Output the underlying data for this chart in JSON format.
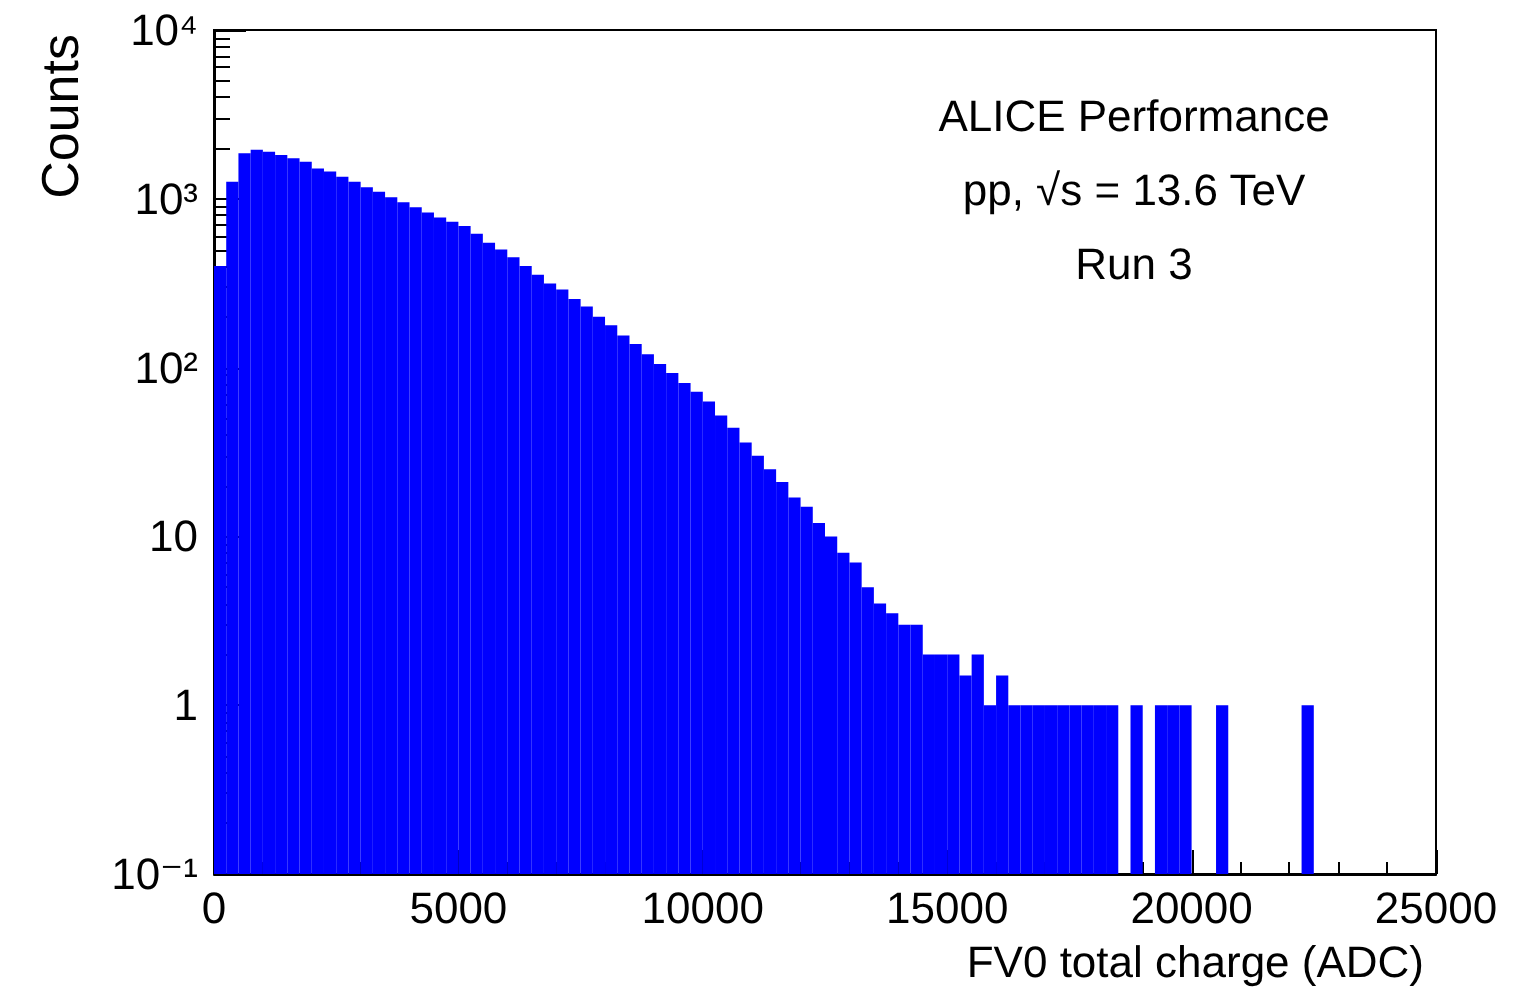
{
  "chart_data": {
    "type": "histogram",
    "xlabel": "FV0 total charge (ADC)",
    "ylabel": "Counts",
    "annotations": [
      "ALICE Performance",
      "pp, √s = 13.6 TeV",
      "Run 3"
    ],
    "color": "#0000ff",
    "log": "y",
    "bins": [
      0,
      250,
      500,
      750,
      1000,
      1250,
      1500,
      1750,
      2000,
      2250,
      2500,
      2750,
      3000,
      3250,
      3500,
      3750,
      4000,
      4250,
      4500,
      4750,
      5000,
      5250,
      5500,
      5750,
      6000,
      6250,
      6500,
      6750,
      7000,
      7250,
      7500,
      7750,
      8000,
      8250,
      8500,
      8750,
      9000,
      9250,
      9500,
      9750,
      10000,
      10250,
      10500,
      10750,
      11000,
      11250,
      11500,
      11750,
      12000,
      12250,
      12500,
      12750,
      13000,
      13250,
      13500,
      13750,
      14000,
      14250,
      14500,
      14750,
      15000,
      15250,
      15500,
      15750,
      16000,
      16250,
      16500,
      16750,
      17000,
      17250,
      17500,
      17750,
      18000,
      18250,
      18500,
      18750,
      19000,
      19250,
      19500,
      19750,
      20000,
      20250,
      20500,
      20750,
      21000,
      21250,
      21500,
      21750,
      22000,
      22250,
      22500
    ],
    "values": [
      400,
      1260,
      1860,
      1950,
      1900,
      1820,
      1740,
      1660,
      1510,
      1450,
      1350,
      1260,
      1170,
      1100,
      1020,
      955,
      890,
      830,
      775,
      730,
      690,
      620,
      550,
      500,
      450,
      400,
      355,
      315,
      290,
      255,
      230,
      200,
      178,
      155,
      138,
      120,
      105,
      93,
      81,
      72,
      63,
      52,
      44,
      36,
      30,
      25,
      21,
      17,
      15,
      12,
      10,
      8,
      7,
      5,
      4,
      3.5,
      3,
      3,
      2,
      2,
      2,
      1.5,
      2,
      1,
      1.5,
      1,
      1,
      1,
      1,
      1,
      1,
      1,
      1,
      1,
      null,
      1,
      null,
      1,
      1,
      1,
      null,
      null,
      1,
      null,
      null,
      null,
      null,
      null,
      null,
      1
    ],
    "xlim": [
      0,
      25000
    ],
    "xticks": [
      0,
      5000,
      10000,
      15000,
      20000,
      25000
    ],
    "ylim": [
      0.1,
      10000
    ],
    "yticks": [
      {
        "value": 0.1,
        "label": "10⁻¹"
      },
      1,
      10,
      {
        "value": 100,
        "label": "10²"
      },
      {
        "value": 1000,
        "label": "10³"
      },
      {
        "value": 10000,
        "label": "10⁴"
      }
    ]
  }
}
